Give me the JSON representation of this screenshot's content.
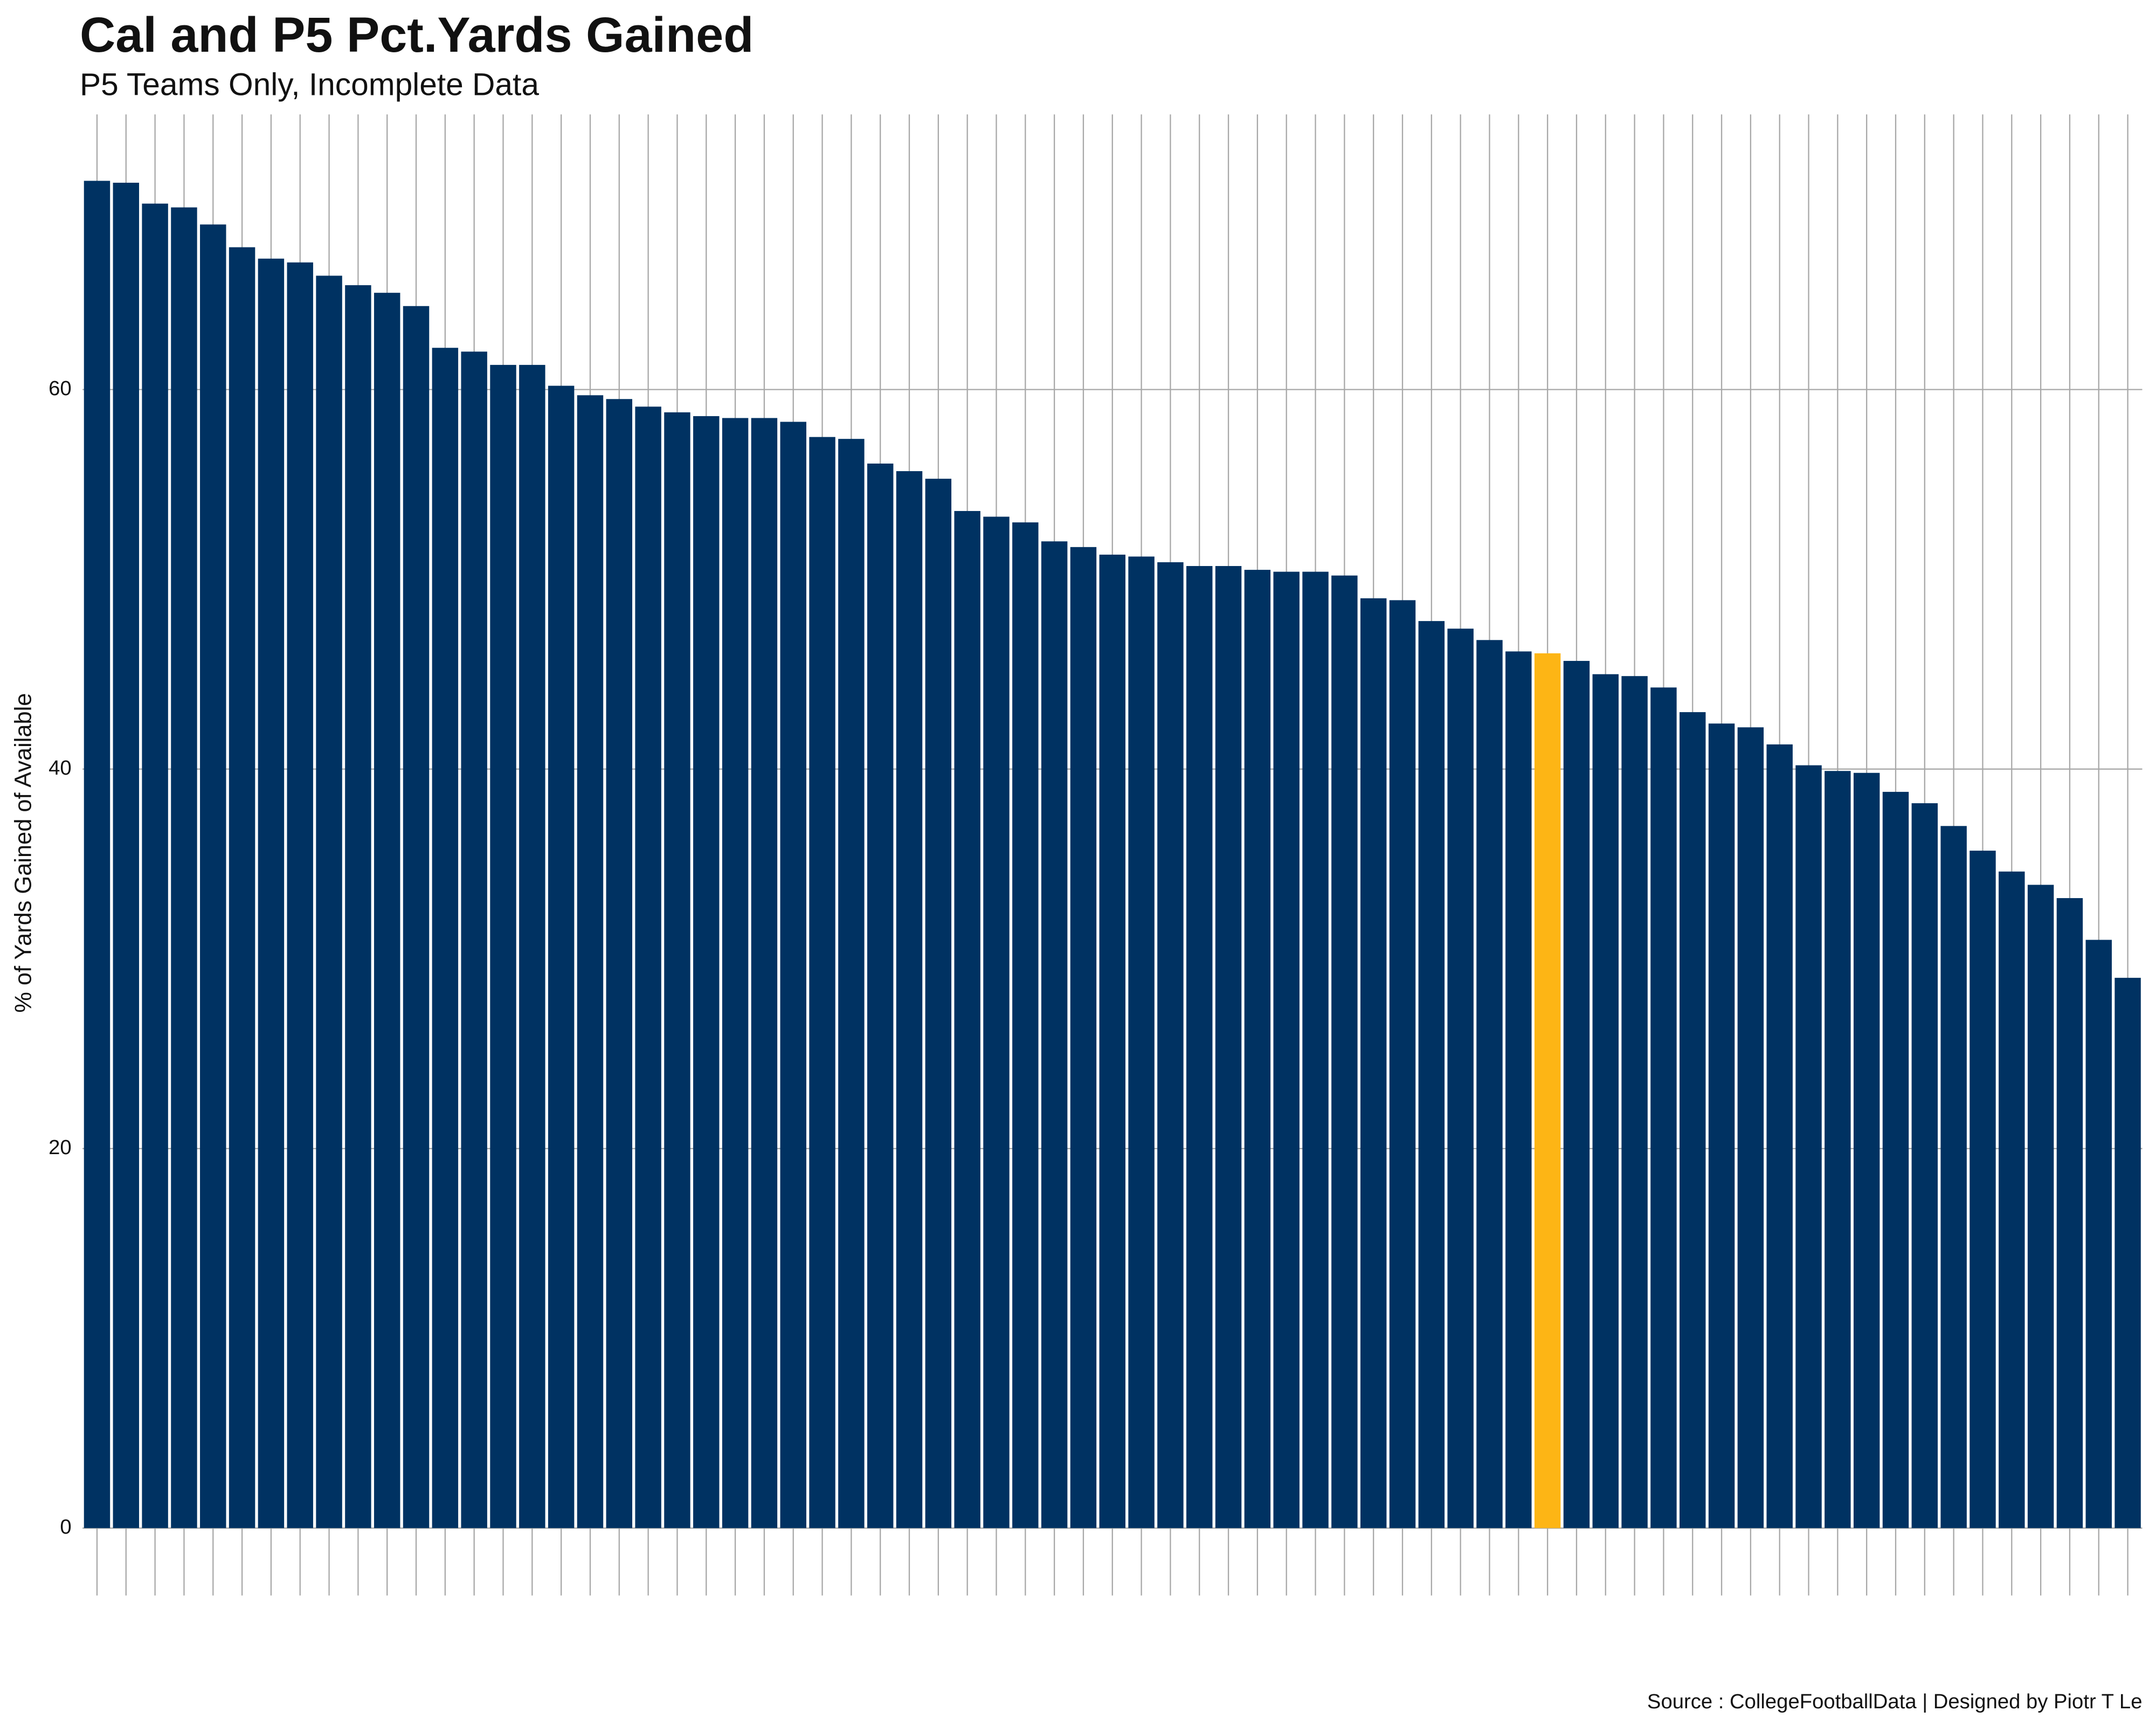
{
  "chart_data": {
    "type": "bar",
    "title": "Cal and P5  Pct.Yards Gained",
    "subtitle": "P5 Teams Only, Incomplete Data",
    "y_label": "% of Yards Gained of Available",
    "caption": "Source : CollegeFootballData | Designed by Piotr T Le",
    "categories": [
      null,
      null,
      null,
      null,
      null,
      null,
      null,
      null,
      null,
      null,
      null,
      null,
      null,
      null,
      null,
      null,
      null,
      null,
      null,
      null,
      null,
      null,
      null,
      null,
      null,
      null,
      null,
      null,
      null,
      null,
      null,
      null,
      null,
      null,
      null,
      null,
      null,
      null,
      null,
      null,
      null,
      null,
      null,
      null,
      null,
      null,
      null,
      null,
      null,
      null,
      null,
      null,
      null,
      null,
      null,
      null,
      null,
      null,
      null,
      null,
      null,
      null,
      null,
      null,
      null,
      null,
      null,
      null,
      null,
      null,
      null
    ],
    "values": [
      71.0,
      70.9,
      69.8,
      69.6,
      68.7,
      67.5,
      66.9,
      66.7,
      66.0,
      65.5,
      65.1,
      64.4,
      62.2,
      62.0,
      61.3,
      61.3,
      60.2,
      59.7,
      59.5,
      59.1,
      58.8,
      58.6,
      58.5,
      58.5,
      58.3,
      57.5,
      57.4,
      56.1,
      55.7,
      55.3,
      53.6,
      53.3,
      53.0,
      52.0,
      51.7,
      51.3,
      51.2,
      50.9,
      50.7,
      50.7,
      50.5,
      50.4,
      50.4,
      50.2,
      49.0,
      48.9,
      47.8,
      47.4,
      46.8,
      46.2,
      46.1,
      45.7,
      45.0,
      44.9,
      44.3,
      43.0,
      42.4,
      42.2,
      41.3,
      40.2,
      39.9,
      39.8,
      38.8,
      38.2,
      37.0,
      35.7,
      34.6,
      33.9,
      33.2,
      31.0,
      29.0
    ],
    "colors": [
      "#003262",
      "#003262",
      "#003262",
      "#003262",
      "#003262",
      "#003262",
      "#003262",
      "#003262",
      "#003262",
      "#003262",
      "#003262",
      "#003262",
      "#003262",
      "#003262",
      "#003262",
      "#003262",
      "#003262",
      "#003262",
      "#003262",
      "#003262",
      "#003262",
      "#003262",
      "#003262",
      "#003262",
      "#003262",
      "#003262",
      "#003262",
      "#003262",
      "#003262",
      "#003262",
      "#003262",
      "#003262",
      "#003262",
      "#003262",
      "#003262",
      "#003262",
      "#003262",
      "#003262",
      "#003262",
      "#003262",
      "#003262",
      "#003262",
      "#003262",
      "#003262",
      "#003262",
      "#003262",
      "#003262",
      "#003262",
      "#003262",
      "#003262",
      "#FDB515",
      "#003262",
      "#003262",
      "#003262",
      "#003262",
      "#003262",
      "#003262",
      "#003262",
      "#003262",
      "#003262",
      "#003262",
      "#003262",
      "#003262",
      "#003262",
      "#003262",
      "#003262",
      "#003262",
      "#003262",
      "#003262",
      "#003262",
      "#003262"
    ],
    "ylim": [
      -3.55,
      74.5
    ],
    "yticks": [
      0,
      20,
      40,
      60
    ],
    "grid": true
  }
}
